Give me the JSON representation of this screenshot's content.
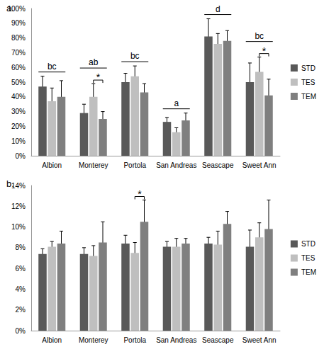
{
  "chart_data": [
    {
      "type": "bar",
      "title": "a.",
      "categories": [
        "Albion",
        "Monterey",
        "Portola",
        "San Andreas",
        "Seascape",
        "Sweet Ann"
      ],
      "series": [
        {
          "name": "STD",
          "color": "#595959",
          "values": [
            47,
            29,
            50,
            23,
            81,
            50
          ],
          "errors": [
            7,
            6,
            6,
            3,
            12,
            13
          ]
        },
        {
          "name": "TES",
          "color": "#bfbfbf",
          "values": [
            37,
            40,
            54,
            16,
            76,
            57
          ],
          "errors": [
            9,
            9,
            7,
            3,
            7,
            10
          ]
        },
        {
          "name": "TEM",
          "color": "#7f7f7f",
          "values": [
            40,
            25,
            43,
            24,
            78,
            41
          ],
          "errors": [
            11,
            5,
            6,
            5,
            7,
            11
          ]
        }
      ],
      "ylim": [
        0,
        100
      ],
      "yticks": [
        {
          "value": 0,
          "label": "0%"
        },
        {
          "value": 10,
          "label": "10%"
        },
        {
          "value": 20,
          "label": "20%"
        },
        {
          "value": 30,
          "label": "30%"
        },
        {
          "value": 40,
          "label": "40%"
        },
        {
          "value": 50,
          "label": "50%"
        },
        {
          "value": 60,
          "label": "60%"
        },
        {
          "value": 70,
          "label": "70%"
        },
        {
          "value": 80,
          "label": "80%"
        },
        {
          "value": 90,
          "label": "90%"
        },
        {
          "value": 100,
          "label": "100%"
        }
      ],
      "grid": false,
      "legend": "right",
      "annotations": {
        "letters": [
          "bc",
          "ab",
          "bc",
          "a",
          "d",
          "bc"
        ],
        "comparisons": [
          {
            "category": "Monterey",
            "between": [
              "TES",
              "TEM"
            ],
            "label": "*"
          },
          {
            "category": "Sweet Ann",
            "between": [
              "TES",
              "TEM"
            ],
            "label": "*"
          }
        ]
      }
    },
    {
      "type": "bar",
      "title": "b.",
      "categories": [
        "Albion",
        "Monterey",
        "Portola",
        "San Andreas",
        "Seascape",
        "Sweet Ann"
      ],
      "series": [
        {
          "name": "STD",
          "color": "#595959",
          "values": [
            7.4,
            7.4,
            8.4,
            8.1,
            8.4,
            8.1
          ],
          "errors": [
            0.5,
            0.6,
            0.8,
            0.5,
            0.6,
            1.6
          ]
        },
        {
          "name": "TES",
          "color": "#bfbfbf",
          "values": [
            8.1,
            7.2,
            7.5,
            8.1,
            8.3,
            9.0
          ],
          "errors": [
            0.5,
            1.0,
            1.0,
            0.8,
            1.3,
            1.4
          ]
        },
        {
          "name": "TEM",
          "color": "#7f7f7f",
          "values": [
            8.4,
            8.5,
            10.5,
            8.4,
            10.3,
            9.8
          ],
          "errors": [
            1.2,
            2.0,
            2.1,
            0.5,
            1.2,
            2.8
          ]
        }
      ],
      "ylim": [
        0,
        14
      ],
      "yticks": [
        {
          "value": 0,
          "label": "0%"
        },
        {
          "value": 2,
          "label": "2%"
        },
        {
          "value": 4,
          "label": "4%"
        },
        {
          "value": 6,
          "label": "6%"
        },
        {
          "value": 8,
          "label": "8%"
        },
        {
          "value": 10,
          "label": "10%"
        },
        {
          "value": 12,
          "label": "12%"
        },
        {
          "value": 14,
          "label": "14%"
        }
      ],
      "grid": false,
      "legend": "right",
      "annotations": {
        "comparisons": [
          {
            "category": "Portola",
            "between": [
              "TES",
              "TEM"
            ],
            "label": "*"
          }
        ]
      }
    }
  ]
}
